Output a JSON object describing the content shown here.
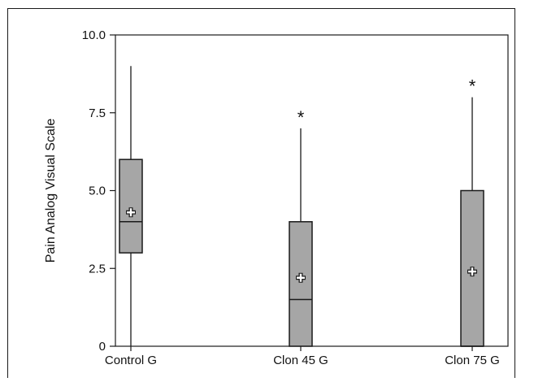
{
  "chart_data": {
    "type": "box",
    "title": "",
    "xlabel": "",
    "ylabel": "Pain Analog Visual Scale",
    "ylim": [
      0,
      10
    ],
    "y_ticks": [
      "0",
      "2.5",
      "5.0",
      "7.5",
      "10.0"
    ],
    "y_tick_values": [
      0,
      2.5,
      5.0,
      7.5,
      10.0
    ],
    "categories": [
      "Control G",
      "Clon 45 G",
      "Clon 75 G"
    ],
    "boxes": [
      {
        "category": "Control G",
        "min": 0,
        "q1": 3.0,
        "median": 4.0,
        "q3": 6.0,
        "max": 9.0,
        "mean": 4.3,
        "significance": ""
      },
      {
        "category": "Clon 45 G",
        "min": 0,
        "q1": 0,
        "median": 1.5,
        "q3": 4.0,
        "max": 7.0,
        "mean": 2.2,
        "significance": "*"
      },
      {
        "category": "Clon 75 G",
        "min": 0,
        "q1": 0,
        "median": 0,
        "q3": 5.0,
        "max": 8.0,
        "mean": 2.4,
        "significance": "*"
      }
    ],
    "grid": false,
    "colors": {
      "box_fill": "#a6a6a6",
      "stroke": "#1a1a1a",
      "mean_marker": "#ffffff"
    }
  }
}
